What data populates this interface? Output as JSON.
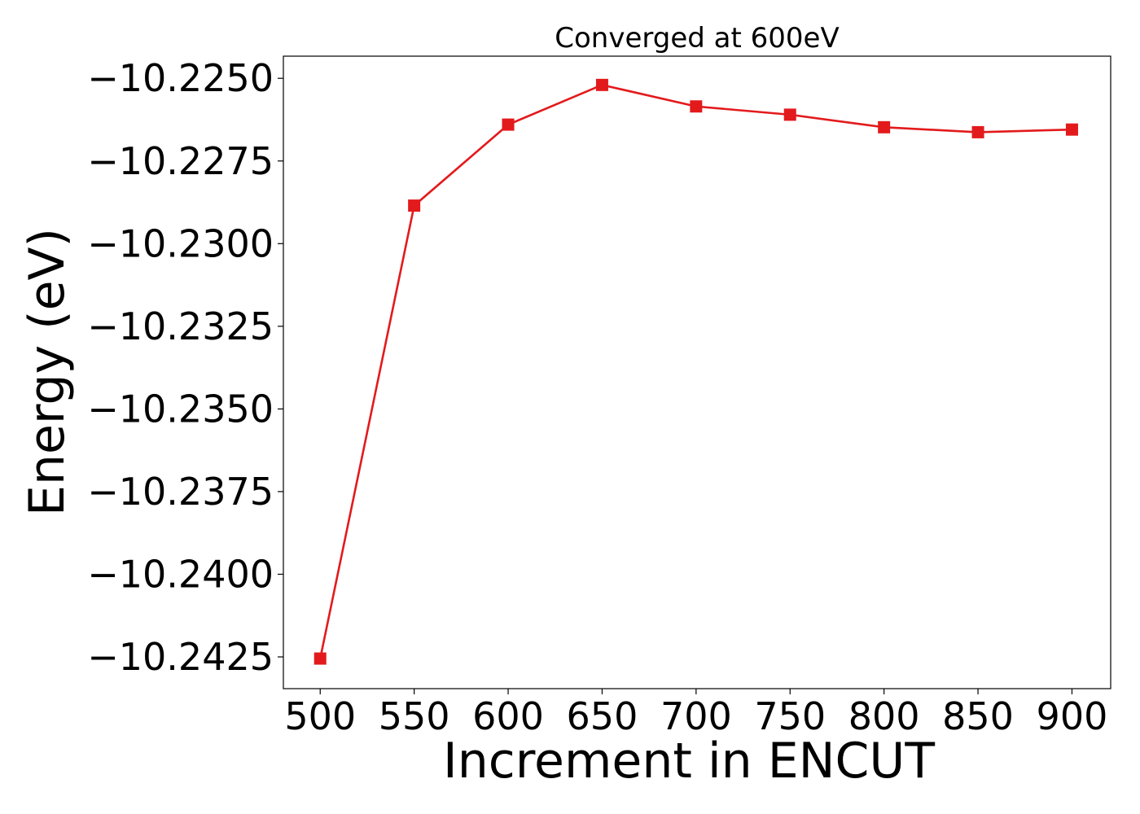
{
  "chart_data": {
    "type": "line",
    "title": "Converged at 600eV",
    "xlabel": "Increment in ENCUT",
    "ylabel": "Energy (eV)",
    "x": [
      500,
      550,
      600,
      650,
      700,
      750,
      800,
      850,
      900
    ],
    "series": [
      {
        "values": [
          -10.24255,
          -10.22885,
          -10.2264,
          -10.2252,
          -10.22585,
          -10.2261,
          -10.22648,
          -10.22663,
          -10.22655
        ]
      }
    ],
    "xticks": [
      500,
      550,
      600,
      650,
      700,
      750,
      800,
      850,
      900
    ],
    "xtick_labels": [
      "500",
      "550",
      "600",
      "650",
      "700",
      "750",
      "800",
      "850",
      "900"
    ],
    "yticks": [
      -10.225,
      -10.2275,
      -10.23,
      -10.2325,
      -10.235,
      -10.2375,
      -10.24,
      -10.2425
    ],
    "ytick_labels": [
      "−10.2250",
      "−10.2275",
      "−10.2300",
      "−10.2325",
      "−10.2350",
      "−10.2375",
      "−10.2400",
      "−10.2425"
    ],
    "xlim": [
      480.4,
      920.6
    ],
    "ylim": [
      -10.24346,
      -10.22433
    ],
    "grid": false,
    "line_color": "#e31a1c",
    "marker": "square"
  }
}
